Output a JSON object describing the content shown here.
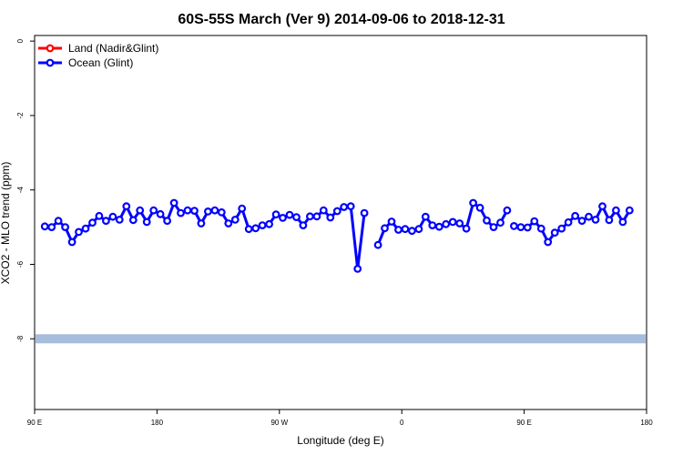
{
  "chart_data": {
    "type": "line",
    "title": "60S-55S March (Ver 9)   2014-09-06 to 2018-12-31",
    "xlabel": "Longitude (deg E)",
    "ylabel": "XCO2 - MLO trend (ppm)",
    "x_ticks": [
      {
        "value": 90,
        "label": "90 E"
      },
      {
        "value": 180,
        "label": "180"
      },
      {
        "value": 270,
        "label": "90 W"
      },
      {
        "value": 360,
        "label": "0"
      },
      {
        "value": 450,
        "label": "90 E"
      },
      {
        "value": 540,
        "label": "180"
      }
    ],
    "y_ticks": [
      0,
      -2,
      -4,
      -6,
      -8
    ],
    "xlim": [
      90,
      540
    ],
    "ylim": [
      -9.9,
      0.15
    ],
    "band": {
      "y": -8.0,
      "color": "#a6bddb"
    },
    "legend": {
      "position": "top-left"
    },
    "series": [
      {
        "name": "Land (Nadir&Glint)",
        "color": "#ff0000",
        "x": [],
        "y": []
      },
      {
        "name": "Ocean (Glint)",
        "color": "#0000ff",
        "x": [
          97.5,
          102.5,
          107.5,
          112.5,
          117.5,
          122.5,
          127.5,
          132.5,
          137.5,
          142.5,
          147.5,
          152.5,
          157.5,
          162.5,
          167.5,
          172.5,
          177.5,
          182.5,
          187.5,
          192.5,
          197.5,
          202.5,
          207.5,
          212.5,
          217.5,
          222.5,
          227.5,
          232.5,
          237.5,
          242.5,
          247.5,
          252.5,
          257.5,
          262.5,
          267.5,
          272.5,
          277.5,
          282.5,
          287.5,
          292.5,
          297.5,
          302.5,
          307.5,
          312.5,
          317.5,
          322.5,
          327.5,
          332.5,
          337.5,
          null,
          342.5,
          347.5,
          352.5,
          357.5,
          362.5,
          367.5,
          372.5,
          377.5,
          382.5,
          null,
          387.5,
          392.5,
          397.5,
          402.5,
          407.5,
          412.5,
          417.5,
          422.5,
          427.5,
          432.5,
          437.5,
          null,
          442.5,
          447.5,
          452.5,
          457.5,
          462.5,
          467.5,
          472.5,
          477.5,
          482.5,
          487.5,
          492.5,
          497.5,
          502.5,
          507.5,
          512.5,
          517.5,
          522.5,
          527.5,
          532.5,
          537.5
        ],
        "y": [
          -4.98,
          -5.0,
          -4.83,
          -5.0,
          -5.4,
          -5.13,
          -5.04,
          -4.88,
          -4.7,
          -4.83,
          -4.72,
          -4.8,
          -4.44,
          -4.81,
          -4.55,
          -4.86,
          -4.55,
          -4.65,
          -4.83,
          -4.35,
          -4.62,
          -4.55,
          -4.56,
          -4.9,
          -4.58,
          -4.55,
          -4.6,
          -4.9,
          -4.8,
          -4.5,
          -5.05,
          -5.03,
          -4.95,
          -4.92,
          -4.66,
          -4.75,
          -4.67,
          -4.73,
          -4.95,
          -4.71,
          -4.71,
          -4.55,
          -4.74,
          -4.57,
          -4.46,
          -4.44,
          -6.12,
          -4.62,
          null,
          null,
          -5.48,
          -5.03,
          -4.85,
          -5.07,
          -5.05,
          -5.1,
          -5.05,
          -4.72,
          -4.95,
          null,
          -4.99,
          -4.92,
          -4.86,
          -4.9,
          -5.04,
          -4.35,
          -4.48,
          -4.82,
          -5.0,
          -4.88,
          -4.55,
          null,
          -4.97,
          -5.0,
          -5.01,
          -4.84,
          -5.04,
          -5.4,
          -5.15,
          -5.04,
          -4.87,
          -4.7,
          -4.83,
          -4.72,
          -4.8,
          -4.44,
          -4.81,
          -4.55,
          -4.86,
          -4.55,
          null,
          null
        ]
      }
    ]
  }
}
